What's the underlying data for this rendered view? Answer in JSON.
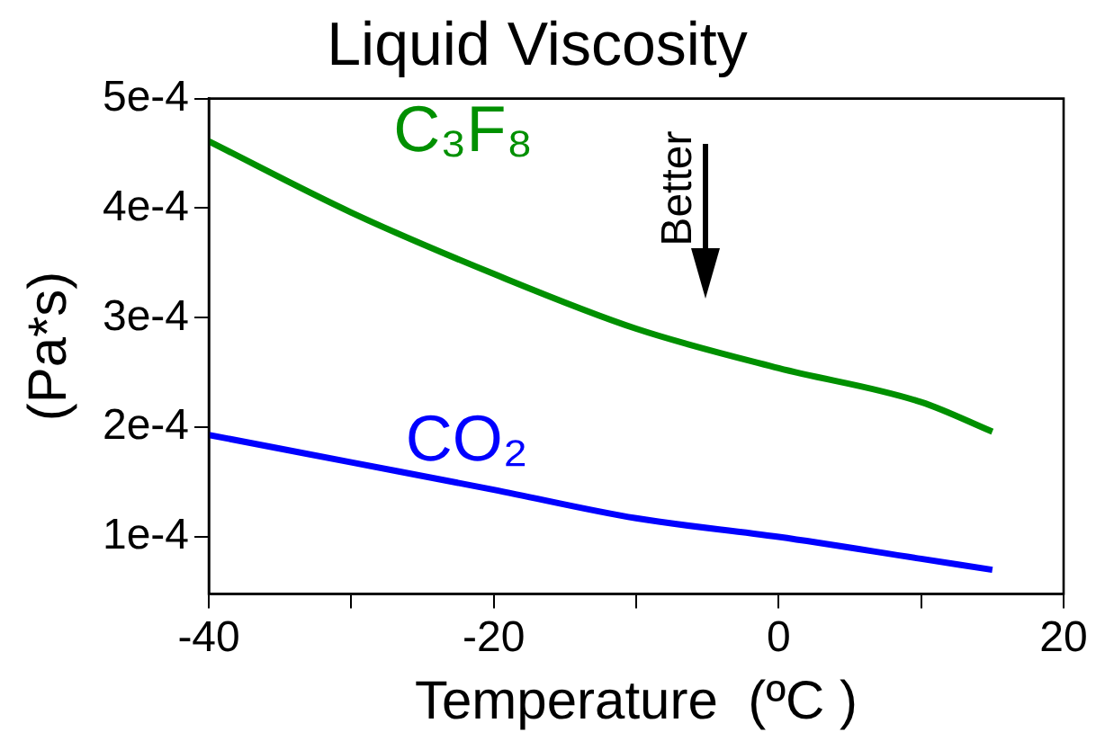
{
  "chart_data": {
    "type": "line",
    "title": "Liquid Viscosity",
    "xlabel": "Temperature  (ºC )",
    "ylabel": "(Pa*s)",
    "x": [
      -40,
      -30,
      -20,
      -10,
      0,
      10,
      15
    ],
    "series": [
      {
        "name": "C₃F₈",
        "color": "#009000",
        "values": [
          0.000461,
          0.000396,
          0.00034,
          0.00029,
          0.000254,
          0.000223,
          0.000196
        ]
      },
      {
        "name": "CO₂",
        "color": "#0000ff",
        "values": [
          0.000193,
          0.000168,
          0.000143,
          0.000117,
          0.0001,
          8e-05,
          7e-05
        ]
      }
    ],
    "xlim": [
      -40,
      20
    ],
    "xticks": [
      -40,
      {
        "value": -30,
        "label": null
      },
      -20,
      {
        "value": -10,
        "label": null
      },
      0,
      {
        "value": 10,
        "label": null
      },
      20
    ],
    "ylim": [
      4.8e-05,
      0.0005
    ],
    "yticks": [
      {
        "value": 0.0001,
        "label": "1e-4"
      },
      {
        "value": 0.0002,
        "label": "2e-4"
      },
      {
        "value": 0.0003,
        "label": "3e-4"
      },
      {
        "value": 0.0004,
        "label": "4e-4"
      },
      {
        "value": 0.0005,
        "label": "5e-4"
      }
    ],
    "annotations": [
      "Better"
    ],
    "legend": false,
    "marker": "none",
    "line_style": "solid"
  }
}
